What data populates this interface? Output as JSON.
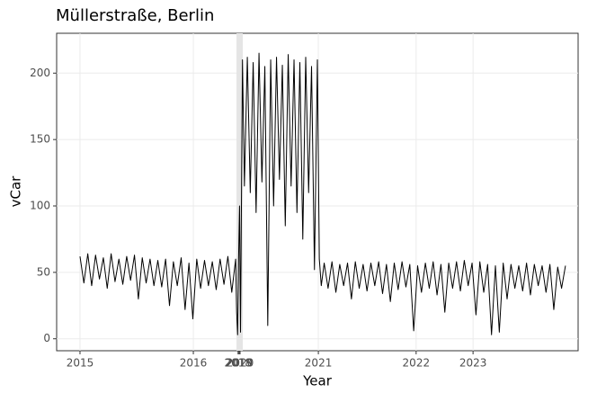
{
  "chart_data": {
    "type": "line",
    "title": "Müllerstraße, Berlin",
    "x_label": "Year",
    "y_label": "vCar",
    "xlim": [
      -48,
      1024
    ],
    "ylim": [
      -9,
      230
    ],
    "xticks": [
      {
        "value": 0,
        "label": "2015"
      },
      {
        "value": 233,
        "label": "2016"
      },
      {
        "value": 325,
        "label": "2018"
      },
      {
        "value": 327,
        "label": "2019"
      },
      {
        "value": 329,
        "label": "2020"
      },
      {
        "value": 490,
        "label": "2021"
      },
      {
        "value": 691,
        "label": "2022"
      },
      {
        "value": 808,
        "label": "2023"
      }
    ],
    "yticks": [
      0,
      50,
      100,
      150,
      200
    ],
    "grid": true,
    "x": [
      0,
      8,
      16,
      24,
      32,
      40,
      48,
      56,
      64,
      72,
      80,
      88,
      96,
      104,
      112,
      120,
      128,
      136,
      144,
      152,
      160,
      168,
      176,
      184,
      192,
      200,
      208,
      216,
      224,
      232,
      240,
      248,
      256,
      264,
      272,
      280,
      288,
      296,
      304,
      312,
      320,
      322,
      324,
      326,
      328,
      330,
      334,
      338,
      344,
      350,
      356,
      362,
      368,
      374,
      380,
      386,
      392,
      398,
      404,
      410,
      416,
      422,
      428,
      434,
      440,
      446,
      452,
      458,
      464,
      470,
      476,
      482,
      488,
      492,
      496,
      502,
      510,
      518,
      526,
      534,
      542,
      550,
      558,
      566,
      574,
      582,
      590,
      598,
      606,
      614,
      622,
      630,
      638,
      646,
      654,
      662,
      670,
      678,
      686,
      694,
      702,
      710,
      718,
      726,
      734,
      742,
      750,
      758,
      766,
      774,
      782,
      790,
      798,
      806,
      814,
      822,
      830,
      838,
      846,
      854,
      862,
      870,
      878,
      886,
      894,
      902,
      910,
      918,
      926,
      934,
      942,
      950,
      958,
      966,
      974,
      982,
      990,
      998
    ],
    "series": [
      {
        "name": "vCar",
        "color": "#000000",
        "values": [
          62,
          42,
          64,
          40,
          63,
          45,
          61,
          38,
          64,
          43,
          60,
          41,
          62,
          44,
          63,
          30,
          61,
          42,
          60,
          40,
          59,
          39,
          60,
          25,
          58,
          40,
          61,
          22,
          57,
          15,
          60,
          38,
          59,
          40,
          58,
          37,
          60,
          41,
          62,
          35,
          60,
          20,
          3,
          60,
          100,
          5,
          210,
          115,
          212,
          110,
          208,
          95,
          215,
          118,
          205,
          10,
          210,
          100,
          212,
          120,
          206,
          85,
          214,
          115,
          210,
          95,
          208,
          75,
          212,
          110,
          205,
          52,
          210,
          60,
          40,
          57,
          38,
          58,
          35,
          56,
          40,
          57,
          30,
          58,
          38,
          56,
          36,
          57,
          40,
          58,
          34,
          56,
          28,
          57,
          37,
          58,
          39,
          56,
          6,
          55,
          35,
          57,
          38,
          58,
          33,
          56,
          20,
          57,
          38,
          58,
          36,
          59,
          40,
          57,
          18,
          58,
          35,
          56,
          3,
          55,
          5,
          57,
          30,
          56,
          38,
          55,
          36,
          57,
          33,
          56,
          40,
          55,
          35,
          56,
          22,
          54,
          38,
          55
        ]
      }
    ]
  }
}
